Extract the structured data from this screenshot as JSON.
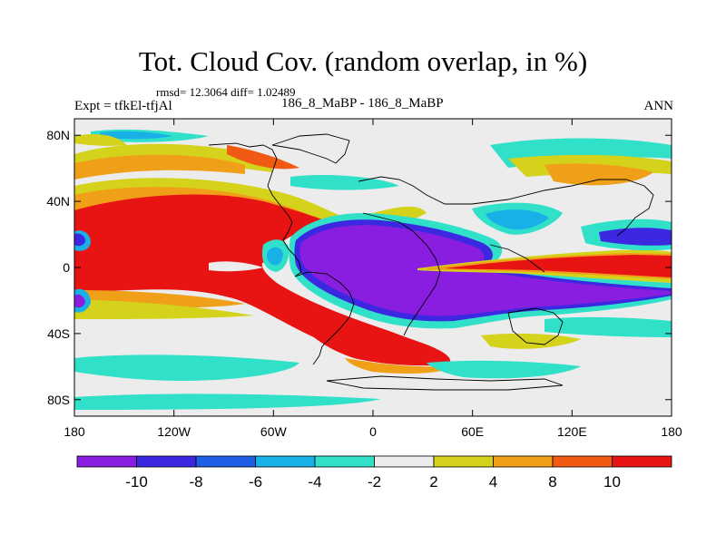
{
  "header": {
    "title": "Tot. Cloud Cov. (random overlap, in %)",
    "stats": "rmsd= 12.3064 diff= 1.02489",
    "left_label": "Expt = tfkEl-tfjAl",
    "center_label": "186_8_MaBP - 186_8_MaBP",
    "right_label": "ANN"
  },
  "chart_data": {
    "type": "heatmap",
    "title": "Tot. Cloud Cov. (random overlap, in %)",
    "xlabel": "",
    "ylabel": "",
    "x_ticks": [
      "180",
      "120W",
      "60W",
      "0",
      "60E",
      "120E",
      "180"
    ],
    "x_values": [
      -180,
      -120,
      -60,
      0,
      60,
      120,
      180
    ],
    "y_ticks": [
      "80N",
      "40N",
      "0",
      "40S",
      "80S"
    ],
    "y_values": [
      80,
      40,
      0,
      -40,
      -80
    ],
    "xlim": [
      -180,
      180
    ],
    "ylim": [
      -90,
      90
    ],
    "colorbar": {
      "labels": [
        "-10",
        "-8",
        "-6",
        "-4",
        "-2",
        "2",
        "4",
        "8",
        "10"
      ],
      "colors": [
        "#8a1ee0",
        "#3c28e0",
        "#1e5ee6",
        "#18b0e6",
        "#30e0c8",
        "#ececec",
        "#d4d21a",
        "#f0a018",
        "#f05a12",
        "#e81414"
      ]
    },
    "regions": [
      {
        "value": "10",
        "color": "#e81414",
        "label": "Central Pacific / South Atlantic maximum"
      },
      {
        "value": "10",
        "color": "#e81414",
        "label": "Indian Ocean - Western Pacific equatorial maximum"
      },
      {
        "value": "-10",
        "color": "#8a1ee0",
        "label": "Africa - Indian Ocean minimum"
      }
    ]
  }
}
